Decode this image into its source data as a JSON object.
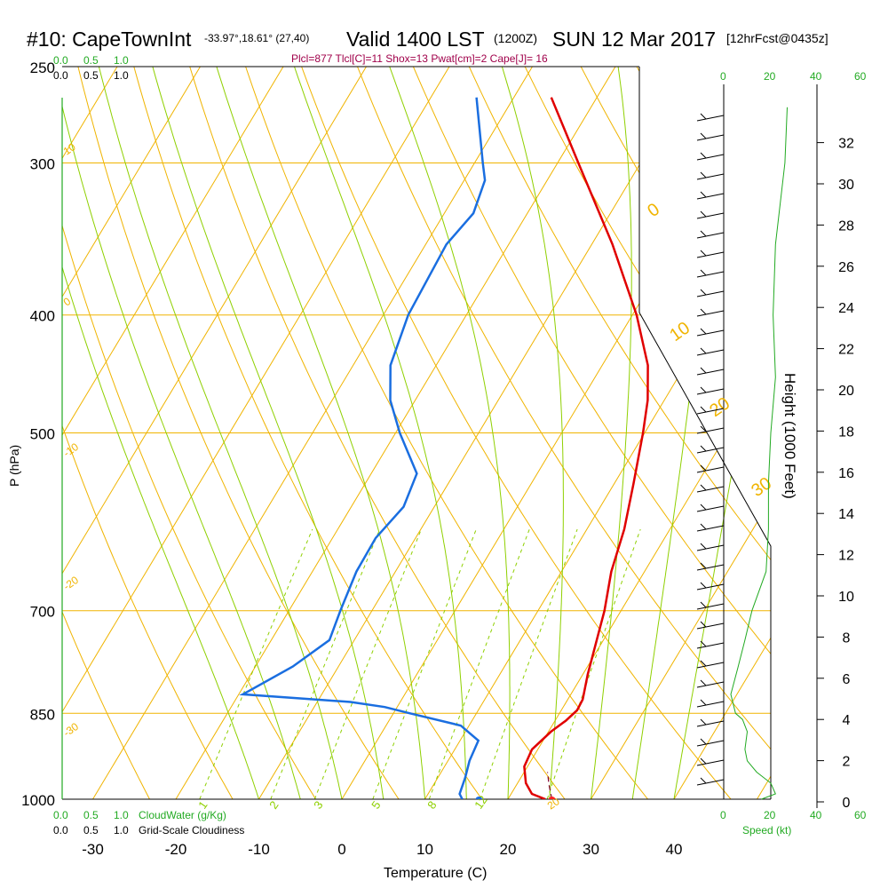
{
  "header": {
    "station": "#10: CapeTownInt",
    "coords": "-33.97°,18.61° (27,40)",
    "valid": "Valid 1400 LST",
    "zulu": "(1200Z)",
    "date": "SUN 12 Mar 2017",
    "forecast": "[12hrFcst@0435z]",
    "indices": "Plcl=877 Tlcl[C]=11 Shox=13 Pwat[cm]=2 Cape[J]= 16"
  },
  "left_scales": {
    "cloudwater_ticks": [
      "0.0",
      "0.5",
      "1.0"
    ],
    "cloudiness_ticks": [
      "0.0",
      "0.5",
      "1.0"
    ],
    "cloudwater_label": "CloudWater (g/Kg)",
    "cloudiness_label": "Grid-Scale Cloudiness"
  },
  "wind_speed_axis": {
    "ticks": [
      "0",
      "20",
      "40",
      "60"
    ],
    "label": "Speed (kt)"
  },
  "colors": {
    "isotherm": "#f0b400",
    "adiabat": "#8fd000",
    "mixing_ratio": "#8fd000",
    "temperature": "#e00000",
    "dewpoint": "#1a6ee0",
    "speed_trace": "#22aa22",
    "indices_text": "#a0004a",
    "green_text": "#22aa22"
  },
  "chart_data": {
    "type": "skew-t",
    "xlabel": "Temperature (C)",
    "ylabel": "P (hPa)",
    "y2label": "Height (1000 Feet)",
    "x_ticks": [
      -30,
      -20,
      -10,
      0,
      10,
      20,
      30,
      40
    ],
    "p_ticks": [
      250,
      300,
      400,
      500,
      700,
      850,
      1000
    ],
    "height_ticks_kft": [
      0,
      2,
      4,
      6,
      8,
      10,
      12,
      14,
      16,
      18,
      20,
      22,
      24,
      26,
      28,
      30,
      32
    ],
    "isotherm_labels": [
      {
        "t": 0,
        "text": "0"
      },
      {
        "t": 10,
        "text": "10"
      },
      {
        "t": 20,
        "text": "20"
      },
      {
        "t": 30,
        "text": "30"
      },
      {
        "t": -10,
        "text": "-10"
      },
      {
        "t": -20,
        "text": "-20"
      },
      {
        "t": -30,
        "text": "-30"
      },
      {
        "t": 10,
        "text": "10"
      },
      {
        "t": 0,
        "text": "0"
      },
      {
        "t": 20,
        "text": "20"
      }
    ],
    "mixing_ratio_labels": [
      "1",
      "2",
      "3",
      "5",
      "8",
      "12"
    ],
    "temperature": {
      "name": "Temperature",
      "points": [
        [
          1000,
          24.5
        ],
        [
          990,
          22.5
        ],
        [
          970,
          21.0
        ],
        [
          940,
          19.6
        ],
        [
          910,
          19.3
        ],
        [
          880,
          20.3
        ],
        [
          862,
          21.3
        ],
        [
          845,
          21.9
        ],
        [
          828,
          21.8
        ],
        [
          790,
          20.6
        ],
        [
          740,
          19.2
        ],
        [
          700,
          18.0
        ],
        [
          650,
          16.0
        ],
        [
          600,
          14.5
        ],
        [
          550,
          12.3
        ],
        [
          500,
          9.8
        ],
        [
          470,
          8.0
        ],
        [
          440,
          5.5
        ],
        [
          400,
          0.5
        ],
        [
          350,
          -7.5
        ],
        [
          300,
          -17.5
        ],
        [
          265,
          -25.5
        ]
      ]
    },
    "dewpoint": {
      "name": "Dewpoint",
      "points": [
        [
          1000,
          14.5
        ],
        [
          990,
          13.8
        ],
        [
          960,
          13.3
        ],
        [
          930,
          12.6
        ],
        [
          895,
          12.2
        ],
        [
          870,
          9.0
        ],
        [
          850,
          2.0
        ],
        [
          840,
          -1.5
        ],
        [
          832,
          -6.0
        ],
        [
          820,
          -19.5
        ],
        [
          778,
          -15.5
        ],
        [
          740,
          -13.0
        ],
        [
          700,
          -13.8
        ],
        [
          650,
          -14.7
        ],
        [
          610,
          -14.8
        ],
        [
          575,
          -13.7
        ],
        [
          540,
          -14.5
        ],
        [
          500,
          -19.5
        ],
        [
          470,
          -23.0
        ],
        [
          440,
          -25.5
        ],
        [
          400,
          -27.0
        ],
        [
          350,
          -27.5
        ],
        [
          330,
          -26.5
        ],
        [
          310,
          -27.5
        ],
        [
          300,
          -29.0
        ],
        [
          265,
          -34.5
        ]
      ]
    },
    "surface_markers": {
      "temperature": 25.3,
      "dewpoint": 16.5
    },
    "parcel": {
      "name": "Parcel",
      "points": [
        [
          1000,
          25.3
        ],
        [
          975,
          24.0
        ],
        [
          950,
          22.8
        ]
      ]
    },
    "wind_speed_profile_kt": [
      [
        1000,
        16
      ],
      [
        990,
        22
      ],
      [
        970,
        20
      ],
      [
        950,
        14
      ],
      [
        930,
        10
      ],
      [
        910,
        9
      ],
      [
        880,
        10
      ],
      [
        860,
        8
      ],
      [
        850,
        5
      ],
      [
        820,
        3
      ],
      [
        780,
        6
      ],
      [
        740,
        9
      ],
      [
        700,
        12
      ],
      [
        650,
        18
      ],
      [
        600,
        19
      ],
      [
        550,
        19
      ],
      [
        500,
        20
      ],
      [
        450,
        22
      ],
      [
        400,
        21
      ],
      [
        350,
        22
      ],
      [
        300,
        26
      ],
      [
        270,
        27
      ]
    ]
  }
}
